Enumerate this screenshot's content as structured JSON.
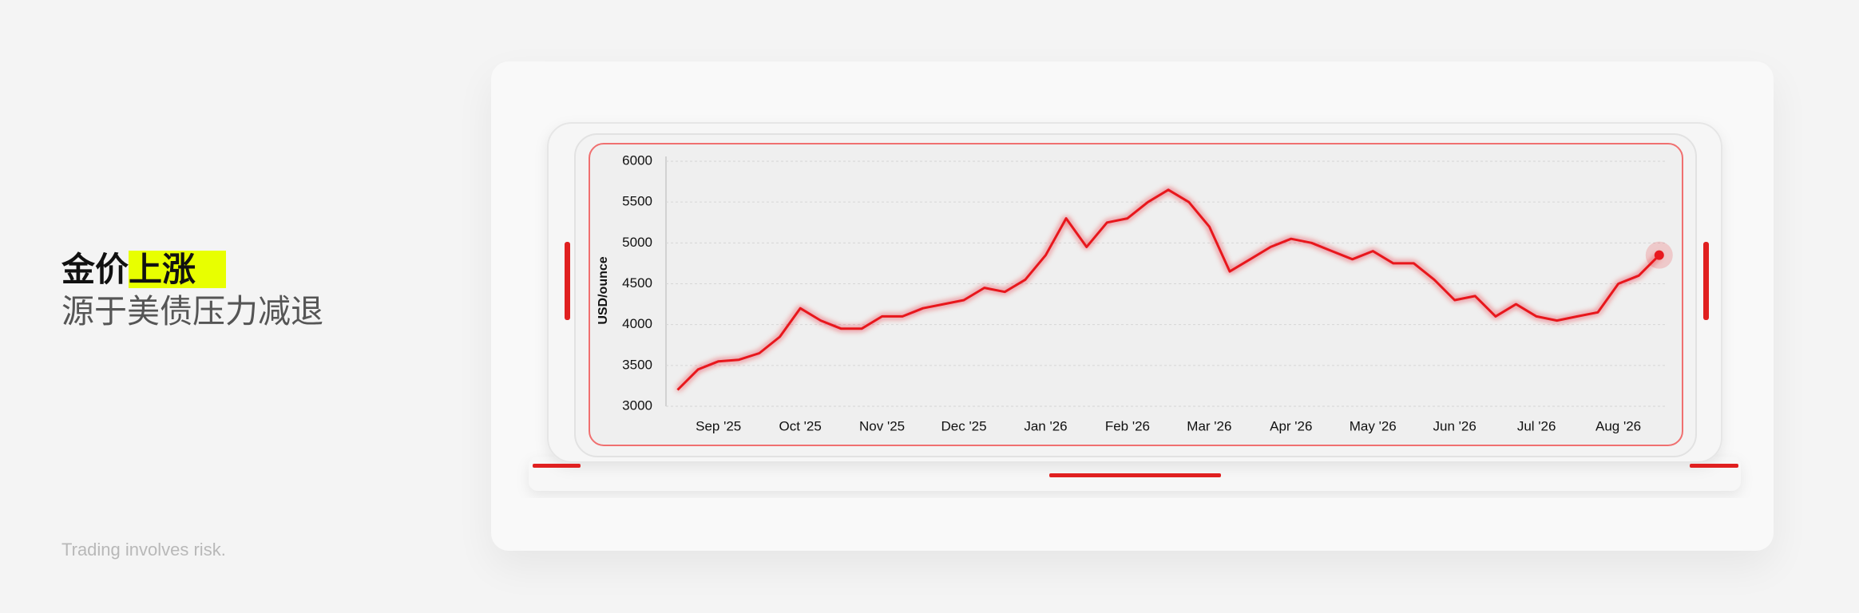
{
  "headline": {
    "text": "金价",
    "highlight": "上涨"
  },
  "subheadline": "源于美债压力减退",
  "disclaimer": "Trading involves risk.",
  "chart_data": {
    "type": "line",
    "y_label": "USD/ounce",
    "color": "#e8191f",
    "categories": [
      null,
      null,
      "Sep '25",
      null,
      null,
      null,
      "Oct '25",
      null,
      null,
      null,
      "Nov '25",
      null,
      null,
      null,
      "Dec '25",
      null,
      null,
      null,
      "Jan '26",
      null,
      null,
      null,
      "Feb '26",
      null,
      null,
      null,
      "Mar '26",
      null,
      null,
      null,
      "Apr '26",
      null,
      null,
      null,
      "May '26",
      null,
      null,
      null,
      "Jun '26",
      null,
      null,
      null,
      "Jul '26",
      null,
      null,
      null,
      "Aug '26",
      null,
      null
    ],
    "values": [
      3200,
      3450,
      3550,
      3570,
      3650,
      3850,
      4200,
      4050,
      3950,
      3950,
      4100,
      4100,
      4200,
      4250,
      4300,
      4450,
      4400,
      4550,
      4850,
      5300,
      4950,
      5250,
      5300,
      5500,
      5650,
      5500,
      5200,
      4650,
      4800,
      4950,
      5050,
      5000,
      4900,
      4800,
      4900,
      4750,
      4750,
      4550,
      4300,
      4350,
      4100,
      4250,
      4100,
      4050,
      4100,
      4150,
      4500,
      4600,
      4850
    ],
    "ylim": [
      3000,
      6000
    ],
    "yticks": [
      3000,
      3500,
      4000,
      4500,
      5000,
      5500,
      6000
    ],
    "grid": true
  }
}
